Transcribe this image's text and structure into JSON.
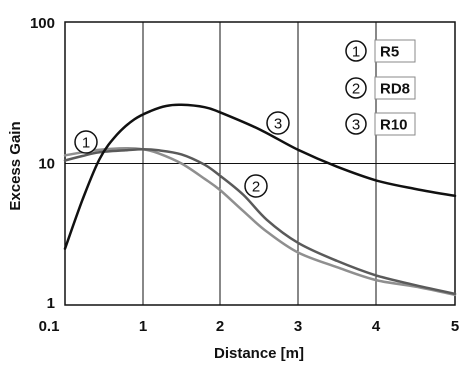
{
  "chart_data": {
    "type": "line",
    "title": "",
    "xlabel": "Distance [m]",
    "ylabel": "Excess Gain",
    "yscale": "log",
    "ylim": [
      1,
      100
    ],
    "xlim": [
      0.1,
      5
    ],
    "grid": true,
    "x_tick_labels": [
      "0.1",
      "1",
      "2",
      "3",
      "4",
      "5"
    ],
    "y_tick_labels": [
      "1",
      "10",
      "100"
    ],
    "legend_position": "top-right",
    "legend": [
      {
        "marker": "1",
        "label": "R5"
      },
      {
        "marker": "2",
        "label": "RD8"
      },
      {
        "marker": "3",
        "label": "R10"
      }
    ],
    "curve_markers": [
      "1",
      "2",
      "3"
    ],
    "series": [
      {
        "name": "R5",
        "color": "#8f8f8f",
        "x": [
          0.1,
          0.3,
          0.5,
          0.8,
          1.0,
          1.2,
          1.5,
          1.8,
          2.0,
          2.3,
          2.6,
          3.0,
          3.5,
          4.0,
          4.5,
          5.0
        ],
        "y": [
          11.4,
          12.0,
          12.5,
          12.8,
          12.6,
          11.8,
          10.0,
          7.8,
          6.5,
          4.6,
          3.3,
          2.35,
          1.85,
          1.5,
          1.35,
          1.18
        ]
      },
      {
        "name": "RD8",
        "color": "#5a5a5a",
        "x": [
          0.1,
          0.3,
          0.5,
          0.8,
          1.0,
          1.2,
          1.5,
          1.8,
          2.0,
          2.3,
          2.6,
          3.0,
          3.5,
          4.0,
          4.5,
          5.0
        ],
        "y": [
          10.5,
          11.3,
          12.0,
          12.4,
          12.6,
          12.4,
          11.6,
          9.8,
          8.2,
          6.0,
          4.0,
          2.75,
          2.05,
          1.62,
          1.38,
          1.2
        ]
      },
      {
        "name": "R10",
        "color": "#111111",
        "x": [
          0.1,
          0.3,
          0.5,
          0.7,
          0.9,
          1.1,
          1.3,
          1.5,
          1.8,
          2.0,
          2.5,
          3.0,
          3.5,
          4.0,
          4.5,
          5.0
        ],
        "y": [
          2.5,
          5.5,
          10.8,
          16.0,
          20.5,
          23.5,
          25.5,
          26.0,
          25.0,
          23.0,
          17.5,
          12.5,
          9.5,
          7.6,
          6.6,
          5.9
        ]
      }
    ]
  }
}
